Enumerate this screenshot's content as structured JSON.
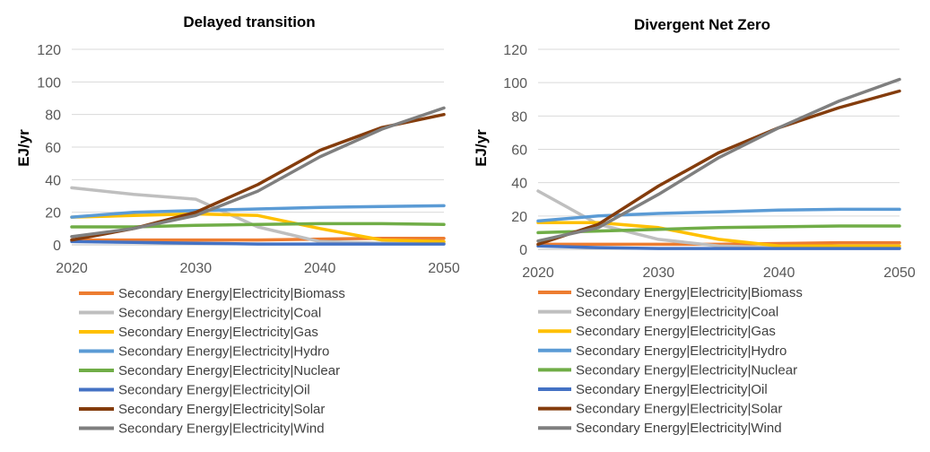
{
  "chart_data": [
    {
      "type": "line",
      "title": "Delayed transition",
      "xlabel": "",
      "ylabel": "EJ/yr",
      "xlim": [
        2020,
        2050
      ],
      "ylim": [
        0,
        120
      ],
      "xticks": [
        2020,
        2030,
        2040,
        2050
      ],
      "yticks": [
        0,
        20,
        40,
        60,
        80,
        100,
        120
      ],
      "grid": "horizontal",
      "legend": "bottom",
      "x": [
        2020,
        2025,
        2030,
        2035,
        2040,
        2045,
        2050
      ],
      "series": [
        {
          "name": "Secondary Energy|Electricity|Biomass",
          "color": "#ED7D31",
          "values": [
            3,
            3,
            3,
            3,
            3.5,
            4,
            4
          ]
        },
        {
          "name": "Secondary Energy|Electricity|Coal",
          "color": "#BFBFBF",
          "values": [
            35,
            31,
            28,
            11,
            2,
            1,
            1
          ]
        },
        {
          "name": "Secondary Energy|Electricity|Gas",
          "color": "#FFC000",
          "values": [
            17,
            18,
            19,
            18,
            10,
            3,
            2
          ]
        },
        {
          "name": "Secondary Energy|Electricity|Hydro",
          "color": "#5B9BD5",
          "values": [
            17,
            20,
            21,
            22,
            23,
            23.5,
            24
          ]
        },
        {
          "name": "Secondary Energy|Electricity|Nuclear",
          "color": "#70AD47",
          "values": [
            11,
            11,
            12,
            12.5,
            13,
            13,
            12.5
          ]
        },
        {
          "name": "Secondary Energy|Electricity|Oil",
          "color": "#4472C4",
          "values": [
            2,
            1.5,
            1,
            0.5,
            0.5,
            0.5,
            0.5
          ]
        },
        {
          "name": "Secondary Energy|Electricity|Solar",
          "color": "#843C0C",
          "values": [
            3,
            10,
            20,
            37,
            58,
            72,
            80
          ]
        },
        {
          "name": "Secondary Energy|Electricity|Wind",
          "color": "#7F7F7F",
          "values": [
            5,
            10,
            18,
            33,
            54,
            71,
            84
          ]
        }
      ]
    },
    {
      "type": "line",
      "title": "Divergent Net Zero",
      "xlabel": "",
      "ylabel": "EJ/yr",
      "xlim": [
        2020,
        2050
      ],
      "ylim": [
        0,
        120
      ],
      "xticks": [
        2020,
        2030,
        2040,
        2050
      ],
      "yticks": [
        0,
        20,
        40,
        60,
        80,
        100,
        120
      ],
      "grid": "horizontal",
      "legend": "bottom",
      "x": [
        2020,
        2025,
        2030,
        2035,
        2040,
        2045,
        2050
      ],
      "series": [
        {
          "name": "Secondary Energy|Electricity|Biomass",
          "color": "#ED7D31",
          "values": [
            3,
            3,
            3,
            3,
            3.5,
            4,
            4
          ]
        },
        {
          "name": "Secondary Energy|Electricity|Coal",
          "color": "#BFBFBF",
          "values": [
            35,
            15,
            6,
            2,
            1,
            1,
            1
          ]
        },
        {
          "name": "Secondary Energy|Electricity|Gas",
          "color": "#FFC000",
          "values": [
            16,
            16,
            13,
            6,
            2,
            2,
            2
          ]
        },
        {
          "name": "Secondary Energy|Electricity|Hydro",
          "color": "#5B9BD5",
          "values": [
            17,
            20,
            21.5,
            22.5,
            23.5,
            24,
            24
          ]
        },
        {
          "name": "Secondary Energy|Electricity|Nuclear",
          "color": "#70AD47",
          "values": [
            10,
            11,
            12,
            13,
            13.5,
            14,
            14
          ]
        },
        {
          "name": "Secondary Energy|Electricity|Oil",
          "color": "#4472C4",
          "values": [
            2,
            1,
            0.5,
            0.5,
            0.5,
            0.5,
            0.5
          ]
        },
        {
          "name": "Secondary Energy|Electricity|Solar",
          "color": "#843C0C",
          "values": [
            3,
            15,
            38,
            58,
            73,
            85,
            95
          ]
        },
        {
          "name": "Secondary Energy|Electricity|Wind",
          "color": "#7F7F7F",
          "values": [
            5,
            13,
            33,
            55,
            73,
            89,
            102
          ]
        }
      ]
    }
  ]
}
